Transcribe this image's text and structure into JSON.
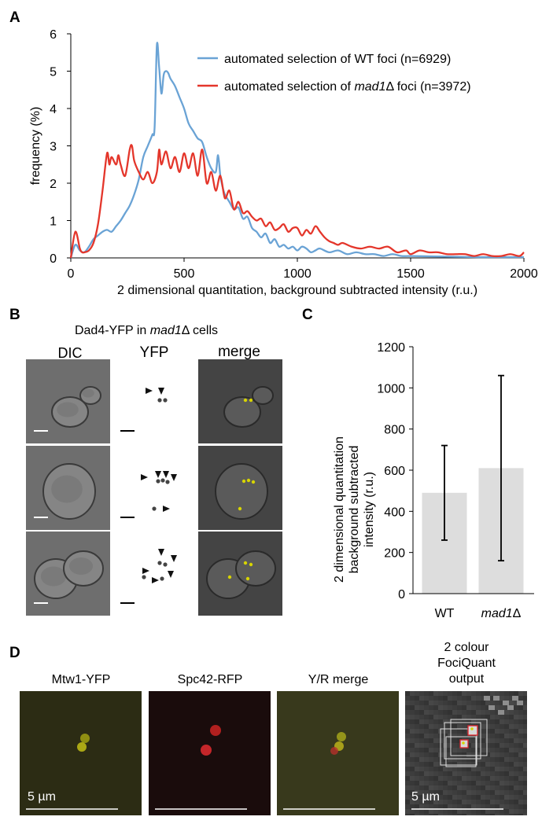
{
  "panels": {
    "a": "A",
    "b": "B",
    "c": "C",
    "d": "D"
  },
  "colors": {
    "wt": "#6aa3d5",
    "mad1": "#e4362b",
    "bar": "#dddddd",
    "yfp": "#d7d400",
    "rfp": "#e1262d"
  },
  "panel_a": {
    "legend_wt": "automated selection of WT foci (n=6929)",
    "legend_mad1_prefix": "automated selection of ",
    "legend_mad1_gene": "mad1",
    "legend_mad1_suffix": "Δ foci (n=3972)"
  },
  "panel_b": {
    "title_prefix": "Dad4-YFP in ",
    "title_gene": "mad1",
    "title_suffix": "Δ cells",
    "col_dic": "DIC",
    "col_yfp": "YFP",
    "col_merge": "merge"
  },
  "panel_d": {
    "col1": "Mtw1-YFP",
    "col2": "Spc42-RFP",
    "col3": "Y/R merge",
    "col4_line1": "2 colour",
    "col4_line2": "FociQuant",
    "col4_line3": "output",
    "scale1": "5 µm",
    "scale4": "5 µm"
  },
  "chart_data": [
    {
      "type": "line",
      "panel": "A",
      "xlabel": "2 dimensional quantitation, background subtracted intensity (r.u.)",
      "ylabel": "frequency (%)",
      "xlim": [
        0,
        2000
      ],
      "ylim": [
        0,
        6
      ],
      "xticks": [
        "0",
        "500",
        "1000",
        "1500",
        "2000"
      ],
      "yticks": [
        "0",
        "1",
        "2",
        "3",
        "4",
        "5",
        "6"
      ],
      "grid": false,
      "legend": "top-right",
      "series": [
        {
          "name": "automated selection of WT foci (n=6929)",
          "x": [
            0,
            20,
            40,
            60,
            80,
            100,
            120,
            140,
            160,
            180,
            200,
            220,
            240,
            260,
            280,
            300,
            320,
            340,
            360,
            370,
            380,
            390,
            400,
            410,
            420,
            430,
            440,
            460,
            480,
            500,
            520,
            540,
            560,
            580,
            600,
            620,
            640,
            650,
            660,
            670,
            680,
            700,
            720,
            740,
            760,
            780,
            800,
            820,
            840,
            860,
            880,
            900,
            920,
            940,
            960,
            980,
            1000,
            1020,
            1040,
            1060,
            1080,
            1100,
            1140,
            1180,
            1220,
            1260,
            1300,
            1340,
            1380,
            1420,
            1460,
            1500,
            1600,
            1700,
            1800,
            1900,
            2000
          ],
          "y": [
            0,
            0.35,
            0.2,
            0.15,
            0.3,
            0.5,
            0.6,
            0.7,
            0.75,
            0.7,
            0.85,
            1.0,
            1.2,
            1.4,
            1.7,
            2.1,
            2.7,
            3.0,
            3.3,
            3.5,
            5.7,
            5.1,
            4.4,
            4.9,
            5.0,
            4.95,
            4.8,
            4.6,
            4.3,
            4.0,
            3.6,
            3.4,
            3.2,
            3.1,
            2.7,
            2.4,
            2.3,
            2.75,
            2.2,
            1.9,
            1.7,
            1.5,
            1.3,
            1.35,
            1.05,
            1.1,
            0.8,
            0.7,
            0.55,
            0.65,
            0.4,
            0.5,
            0.3,
            0.35,
            0.25,
            0.3,
            0.2,
            0.3,
            0.25,
            0.15,
            0.2,
            0.25,
            0.15,
            0.2,
            0.1,
            0.15,
            0.1,
            0.1,
            0.05,
            0.1,
            0.05,
            0.05,
            0.04,
            0.03,
            0.02,
            0.02,
            0.02
          ]
        },
        {
          "name": "automated selection of mad1Δ foci (n=3972)",
          "x": [
            0,
            20,
            40,
            50,
            60,
            80,
            100,
            120,
            140,
            160,
            170,
            180,
            200,
            210,
            220,
            240,
            260,
            270,
            280,
            300,
            320,
            340,
            360,
            380,
            390,
            400,
            420,
            440,
            460,
            480,
            500,
            520,
            540,
            560,
            580,
            600,
            620,
            640,
            660,
            680,
            700,
            720,
            740,
            760,
            780,
            800,
            820,
            840,
            860,
            880,
            900,
            920,
            940,
            960,
            980,
            1000,
            1020,
            1040,
            1060,
            1080,
            1100,
            1120,
            1140,
            1160,
            1180,
            1200,
            1240,
            1280,
            1320,
            1360,
            1400,
            1440,
            1480,
            1500,
            1540,
            1580,
            1620,
            1660,
            1700,
            1740,
            1780,
            1820,
            1860,
            1900,
            1940,
            1980,
            2000
          ],
          "y": [
            0,
            0.7,
            0.25,
            0.15,
            0.15,
            0.2,
            0.4,
            0.9,
            1.8,
            2.8,
            2.5,
            2.7,
            2.5,
            2.75,
            2.5,
            2.2,
            2.9,
            3.0,
            2.6,
            2.3,
            2.1,
            2.3,
            2.0,
            2.3,
            2.9,
            2.5,
            2.85,
            2.4,
            2.7,
            2.3,
            2.8,
            2.4,
            2.8,
            2.2,
            2.9,
            2.0,
            2.3,
            1.8,
            2.2,
            1.6,
            1.8,
            1.3,
            1.5,
            1.2,
            1.25,
            1.1,
            1.0,
            1.05,
            0.85,
            0.95,
            0.75,
            0.8,
            0.9,
            0.7,
            0.8,
            0.8,
            0.6,
            0.75,
            0.65,
            0.85,
            0.7,
            0.55,
            0.45,
            0.4,
            0.35,
            0.4,
            0.3,
            0.25,
            0.3,
            0.25,
            0.3,
            0.15,
            0.2,
            0.1,
            0.2,
            0.15,
            0.15,
            0.1,
            0.1,
            0.1,
            0.05,
            0.1,
            0.05,
            0.05,
            0.1,
            0.05,
            0.15
          ]
        }
      ]
    },
    {
      "type": "bar",
      "panel": "C",
      "categories": [
        "WT",
        "mad1Δ"
      ],
      "values": [
        490,
        610
      ],
      "error_low": [
        260,
        160
      ],
      "error_high": [
        720,
        1060
      ],
      "ylabel_lines": [
        "2 dimensional quantitation",
        "background subtracted",
        "intensity (r.u.)"
      ],
      "ylim": [
        0,
        1200
      ],
      "yticks": [
        "0",
        "200",
        "400",
        "600",
        "800",
        "1000",
        "1200"
      ],
      "grid": false
    }
  ]
}
